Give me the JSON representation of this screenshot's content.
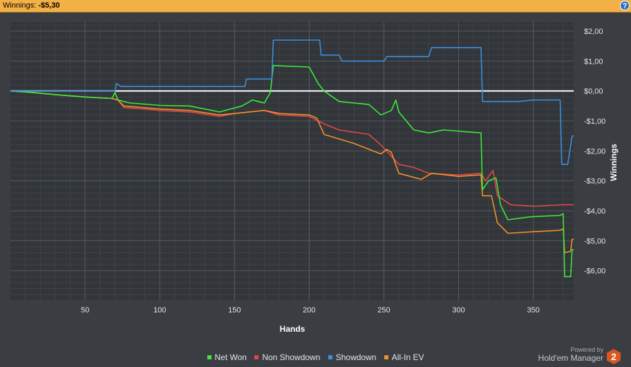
{
  "header": {
    "winnings_label": "Winnings:",
    "winnings_value": "-$5,30",
    "help_icon": "?"
  },
  "brand": {
    "powered_by": "Powered by",
    "name": "Hold'em Manager",
    "logo_text": "2"
  },
  "colors": {
    "net_won": "#3ee83a",
    "non_showdown": "#e04848",
    "showdown": "#3d8fdf",
    "all_in_ev": "#f0922a",
    "zero_line": "#ffffff"
  },
  "chart_data": {
    "type": "line",
    "xlabel": "Hands",
    "ylabel": "Winnings",
    "xlim": [
      0,
      377
    ],
    "ylim": [
      -7.0,
      2.3
    ],
    "x_ticks": [
      50,
      100,
      150,
      200,
      250,
      300,
      350
    ],
    "y_ticks": [
      2,
      1,
      0,
      -1,
      -2,
      -3,
      -4,
      -5,
      -6
    ],
    "y_tick_labels": [
      "$2,00",
      "$1,00",
      "$0,00",
      "-$1,00",
      "-$2,00",
      "-$3,00",
      "-$4,00",
      "-$5,00",
      "-$6,00"
    ],
    "x_tick_labels": [
      "50",
      "100",
      "150",
      "200",
      "250",
      "300",
      "350"
    ],
    "grid": true,
    "legend_position": "bottom",
    "series": [
      {
        "name": "Net Won",
        "points": [
          [
            0,
            0
          ],
          [
            15,
            -0.05
          ],
          [
            30,
            -0.12
          ],
          [
            50,
            -0.2
          ],
          [
            68,
            -0.25
          ],
          [
            70,
            -0.05
          ],
          [
            72,
            -0.3
          ],
          [
            80,
            -0.4
          ],
          [
            100,
            -0.48
          ],
          [
            120,
            -0.5
          ],
          [
            140,
            -0.7
          ],
          [
            155,
            -0.5
          ],
          [
            162,
            -0.3
          ],
          [
            170,
            -0.4
          ],
          [
            174,
            -0.05
          ],
          [
            176,
            0.85
          ],
          [
            200,
            0.8
          ],
          [
            206,
            0.25
          ],
          [
            210,
            0.0
          ],
          [
            220,
            -0.35
          ],
          [
            240,
            -0.45
          ],
          [
            248,
            -0.8
          ],
          [
            255,
            -0.65
          ],
          [
            258,
            -0.3
          ],
          [
            260,
            -0.7
          ],
          [
            270,
            -1.3
          ],
          [
            280,
            -1.4
          ],
          [
            290,
            -1.3
          ],
          [
            315,
            -1.4
          ],
          [
            316,
            -3.3
          ],
          [
            320,
            -3.0
          ],
          [
            325,
            -2.9
          ],
          [
            328,
            -3.8
          ],
          [
            333,
            -4.3
          ],
          [
            348,
            -4.2
          ],
          [
            368,
            -4.15
          ],
          [
            370,
            -4.1
          ],
          [
            371,
            -6.2
          ],
          [
            375,
            -6.2
          ],
          [
            376,
            -5.3
          ],
          [
            377,
            -5.3
          ]
        ]
      },
      {
        "name": "Non Showdown",
        "points": [
          [
            0,
            0
          ],
          [
            15,
            -0.05
          ],
          [
            30,
            -0.12
          ],
          [
            50,
            -0.2
          ],
          [
            68,
            -0.25
          ],
          [
            72,
            -0.3
          ],
          [
            76,
            -0.55
          ],
          [
            100,
            -0.65
          ],
          [
            120,
            -0.7
          ],
          [
            140,
            -0.85
          ],
          [
            150,
            -0.75
          ],
          [
            170,
            -0.65
          ],
          [
            180,
            -0.8
          ],
          [
            200,
            -0.85
          ],
          [
            210,
            -1.1
          ],
          [
            220,
            -1.3
          ],
          [
            240,
            -1.45
          ],
          [
            248,
            -1.8
          ],
          [
            260,
            -2.45
          ],
          [
            270,
            -2.55
          ],
          [
            280,
            -2.75
          ],
          [
            300,
            -2.8
          ],
          [
            315,
            -2.75
          ],
          [
            318,
            -3.0
          ],
          [
            323,
            -2.65
          ],
          [
            326,
            -3.5
          ],
          [
            335,
            -3.8
          ],
          [
            350,
            -3.85
          ],
          [
            370,
            -3.8
          ],
          [
            377,
            -3.8
          ]
        ]
      },
      {
        "name": "Showdown",
        "points": [
          [
            0,
            0
          ],
          [
            70,
            0
          ],
          [
            71,
            0.25
          ],
          [
            74,
            0.15
          ],
          [
            100,
            0.15
          ],
          [
            130,
            0.15
          ],
          [
            157,
            0.15
          ],
          [
            158,
            0.4
          ],
          [
            175,
            0.4
          ],
          [
            176,
            1.7
          ],
          [
            200,
            1.7
          ],
          [
            207,
            1.7
          ],
          [
            208,
            1.2
          ],
          [
            220,
            1.2
          ],
          [
            222,
            1.0
          ],
          [
            250,
            1.0
          ],
          [
            252,
            1.15
          ],
          [
            280,
            1.15
          ],
          [
            282,
            1.45
          ],
          [
            315,
            1.45
          ],
          [
            316,
            -0.35
          ],
          [
            340,
            -0.35
          ],
          [
            350,
            -0.3
          ],
          [
            368,
            -0.3
          ],
          [
            369,
            -2.45
          ],
          [
            373,
            -2.45
          ],
          [
            376,
            -1.5
          ],
          [
            377,
            -1.5
          ]
        ]
      },
      {
        "name": "All-In EV",
        "points": [
          [
            0,
            0
          ],
          [
            15,
            -0.05
          ],
          [
            30,
            -0.12
          ],
          [
            50,
            -0.2
          ],
          [
            68,
            -0.25
          ],
          [
            72,
            -0.3
          ],
          [
            76,
            -0.5
          ],
          [
            100,
            -0.6
          ],
          [
            120,
            -0.65
          ],
          [
            140,
            -0.8
          ],
          [
            150,
            -0.75
          ],
          [
            170,
            -0.65
          ],
          [
            180,
            -0.75
          ],
          [
            200,
            -0.8
          ],
          [
            205,
            -0.9
          ],
          [
            210,
            -1.45
          ],
          [
            220,
            -1.6
          ],
          [
            230,
            -1.75
          ],
          [
            248,
            -2.1
          ],
          [
            252,
            -1.95
          ],
          [
            255,
            -2.05
          ],
          [
            260,
            -2.75
          ],
          [
            275,
            -2.95
          ],
          [
            282,
            -2.75
          ],
          [
            300,
            -2.85
          ],
          [
            315,
            -2.8
          ],
          [
            316,
            -3.5
          ],
          [
            322,
            -3.5
          ],
          [
            326,
            -4.4
          ],
          [
            333,
            -4.75
          ],
          [
            350,
            -4.7
          ],
          [
            368,
            -4.65
          ],
          [
            370,
            -4.6
          ],
          [
            371,
            -5.4
          ],
          [
            375,
            -5.35
          ],
          [
            376,
            -4.95
          ],
          [
            377,
            -4.95
          ]
        ]
      }
    ]
  }
}
